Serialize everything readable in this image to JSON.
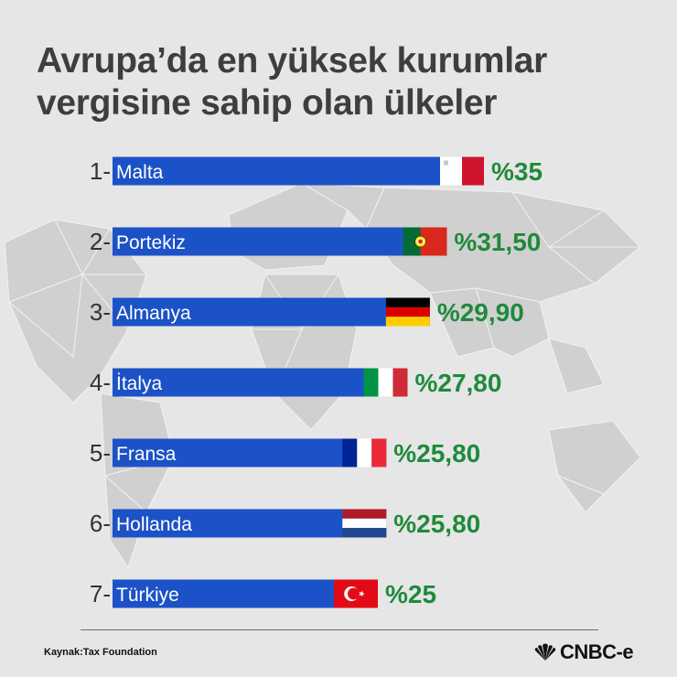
{
  "title_line1": "Avrupa’da en yüksek kurumlar",
  "title_line2": "vergisine sahip olan ülkeler",
  "source": "Kaynak:Tax Foundation",
  "logo_text": "CNBC-e",
  "colors": {
    "bar": "#1c52c7",
    "value": "#1f8a3b",
    "rank": "#333333",
    "background": "#e6e6e6"
  },
  "chart_data": {
    "type": "bar",
    "orientation": "horizontal",
    "ranks": [
      "1-",
      "2-",
      "3-",
      "4-",
      "5-",
      "6-",
      "7-"
    ],
    "categories": [
      "Malta",
      "Portekiz",
      "Almanya",
      "İtalya",
      "Fransa",
      "Hollanda",
      "Türkiye"
    ],
    "values": [
      35,
      31.5,
      29.9,
      27.8,
      25.8,
      25.8,
      25
    ],
    "value_labels": [
      "%35",
      "%31,50",
      "%29,90",
      "%27,80",
      "%25,80",
      "%25,80",
      "%25"
    ],
    "flags": [
      "malta-flag",
      "portugal-flag",
      "germany-flag",
      "italy-flag",
      "france-flag",
      "netherlands-flag",
      "turkey-flag"
    ]
  }
}
